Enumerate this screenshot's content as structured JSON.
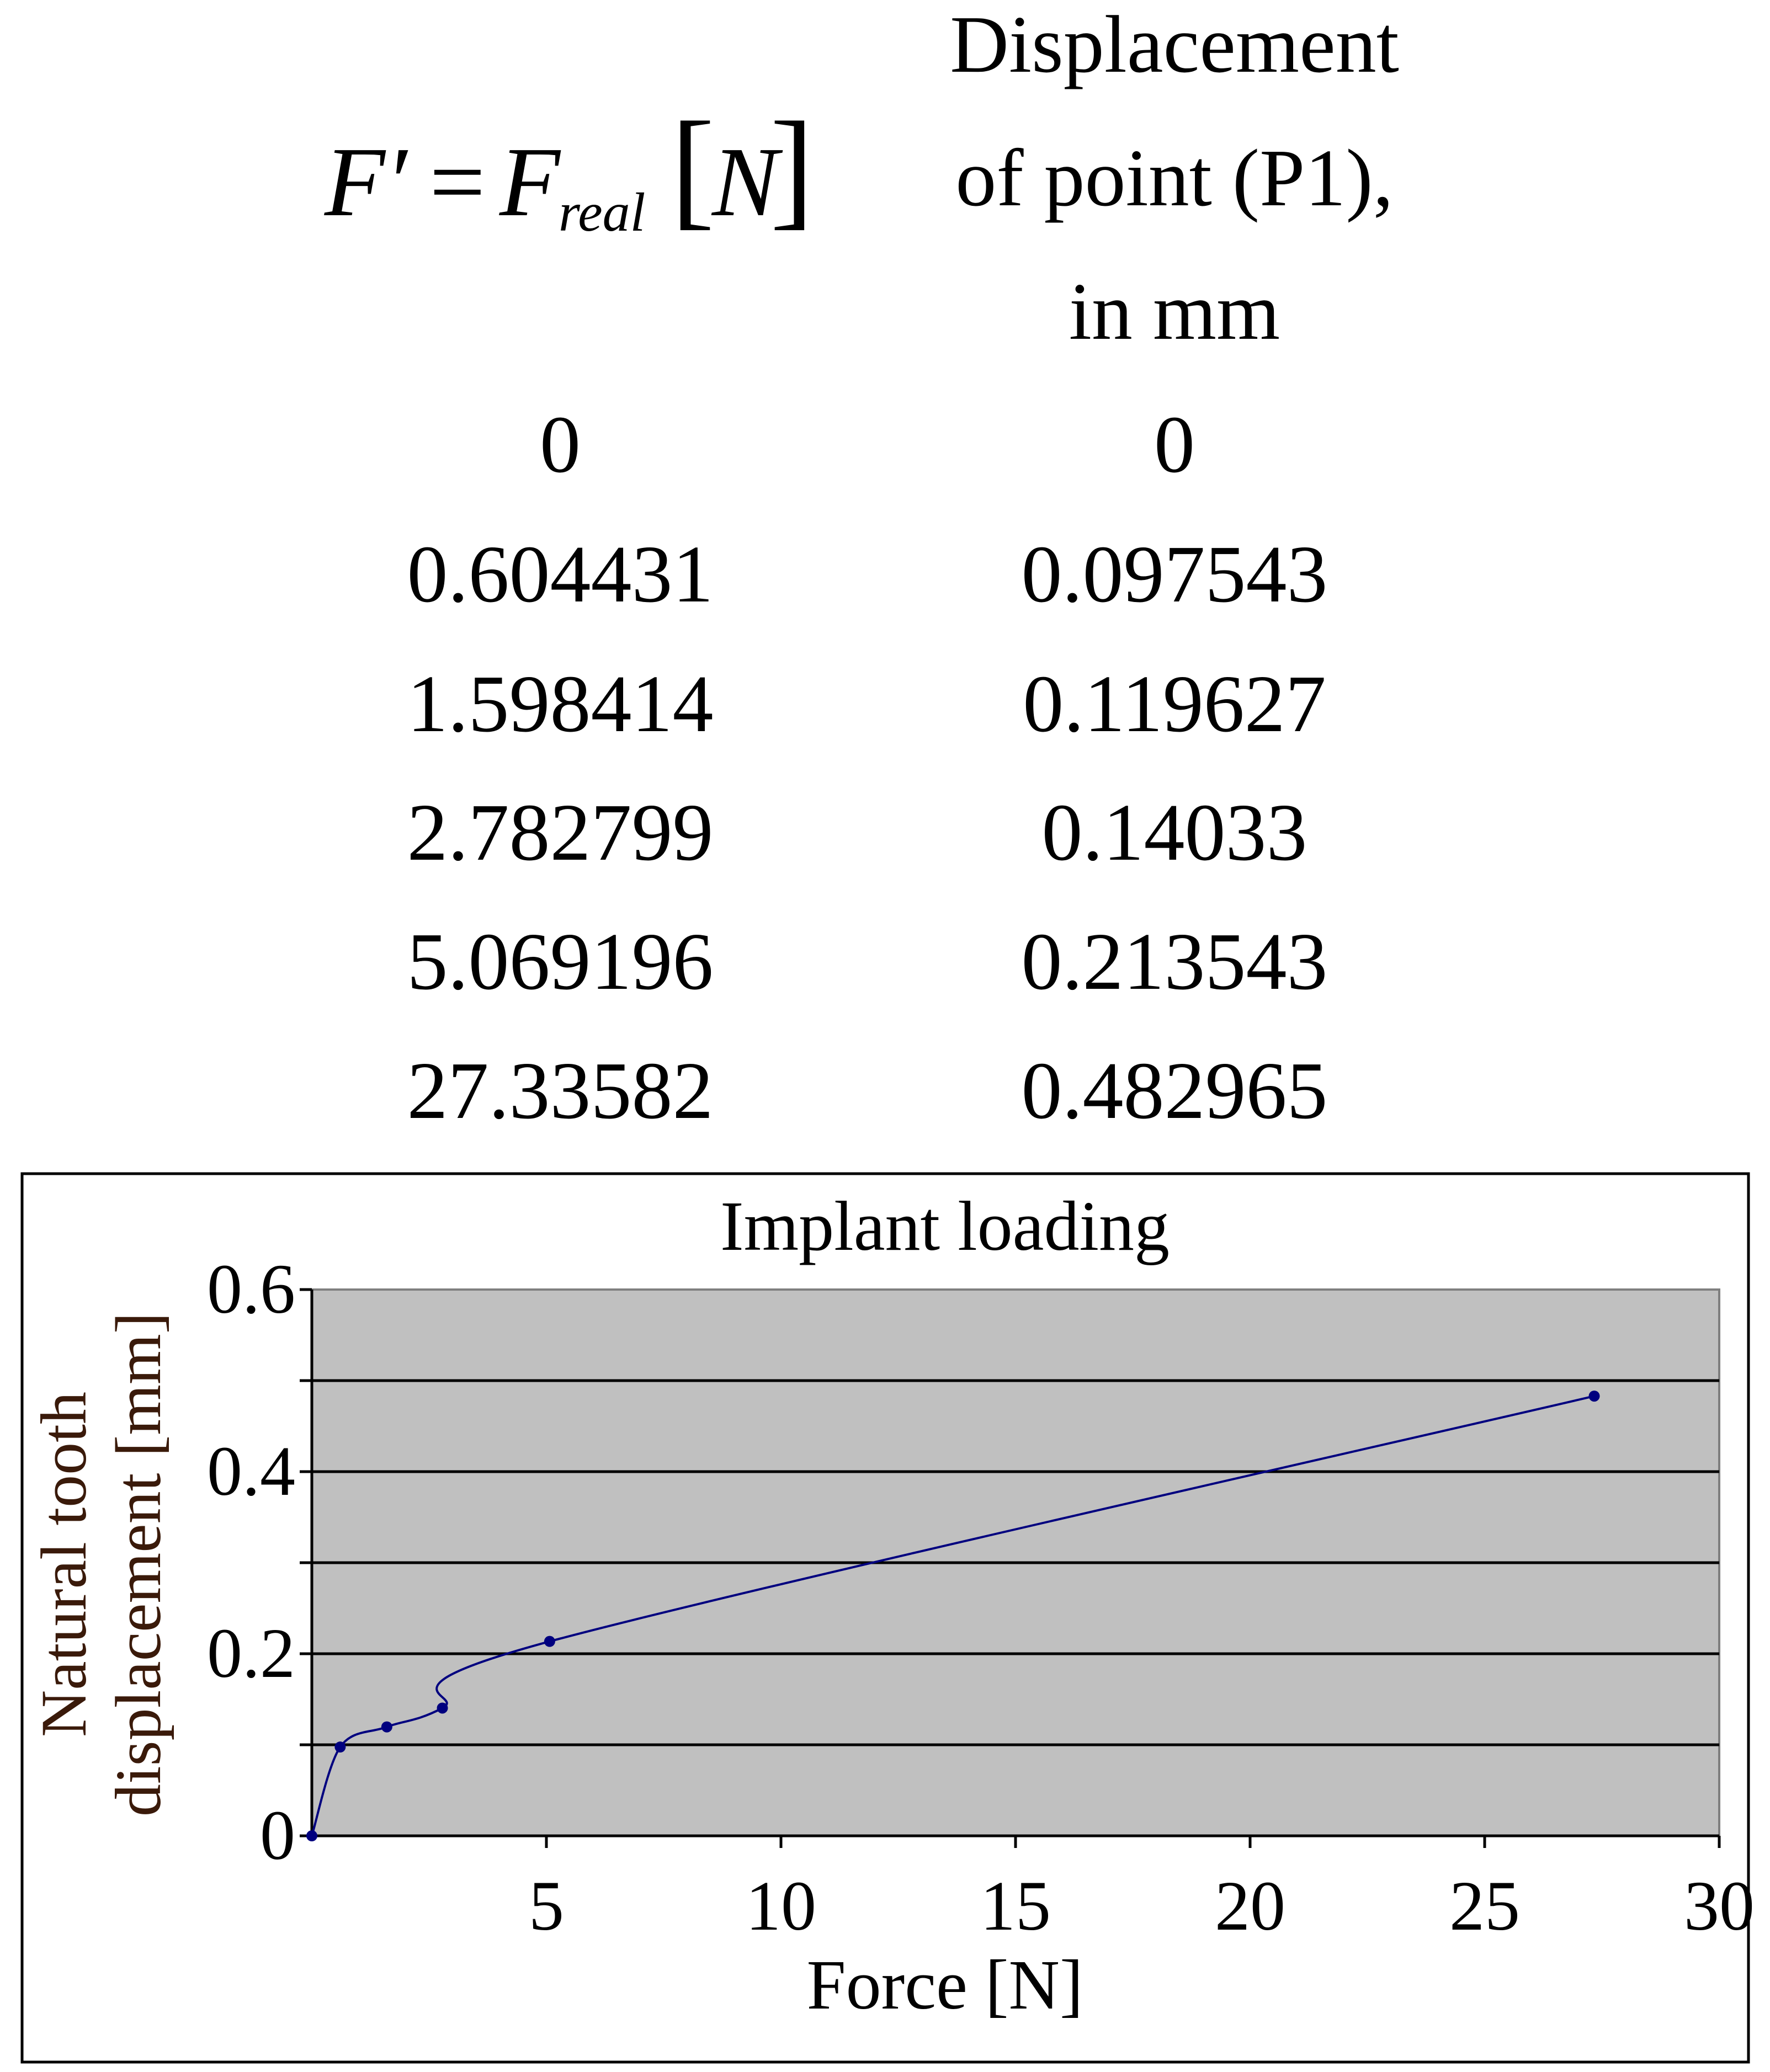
{
  "table": {
    "col1_header": {
      "symbol": "F′",
      "equals": "=",
      "base": "F",
      "subscript": "real",
      "unit": "N"
    },
    "col2_header_lines": [
      "Displacement",
      "of point (P1),",
      "in mm"
    ],
    "rows": [
      [
        "0",
        "0"
      ],
      [
        "0.604431",
        "0.097543"
      ],
      [
        "1.598414",
        "0.119627"
      ],
      [
        "2.782799",
        "0.14033"
      ],
      [
        "5.069196",
        "0.213543"
      ],
      [
        "27.33582",
        "0.482965"
      ]
    ]
  },
  "chart_data": {
    "type": "line",
    "title": "Implant loading",
    "xlabel": "Force [N]",
    "ylabel_lines": [
      "Natural tooth",
      "displacement [mm]"
    ],
    "xlim": [
      0,
      30
    ],
    "ylim": [
      0,
      0.6
    ],
    "x_ticks": [
      "5",
      "10",
      "15",
      "20",
      "25",
      "30"
    ],
    "x_tick_values": [
      5,
      10,
      15,
      20,
      25,
      30
    ],
    "y_ticks": [
      "0",
      "0.2",
      "0.4",
      "0.6"
    ],
    "y_tick_values": [
      0,
      0.2,
      0.4,
      0.6
    ],
    "y_gridlines": [
      0.1,
      0.2,
      0.3,
      0.4,
      0.5
    ],
    "grid": true,
    "series": [
      {
        "name": "Displacement of point (P1)",
        "x": [
          0,
          0.604431,
          1.598414,
          2.782799,
          5.069196,
          27.33582
        ],
        "y": [
          0,
          0.097543,
          0.119627,
          0.14033,
          0.213543,
          0.482965
        ]
      }
    ],
    "colors": {
      "plot_bg": "#c0c0c0",
      "line": "#00007f",
      "axis_label": "#000000",
      "ylabel": "#3a1a0a"
    }
  }
}
